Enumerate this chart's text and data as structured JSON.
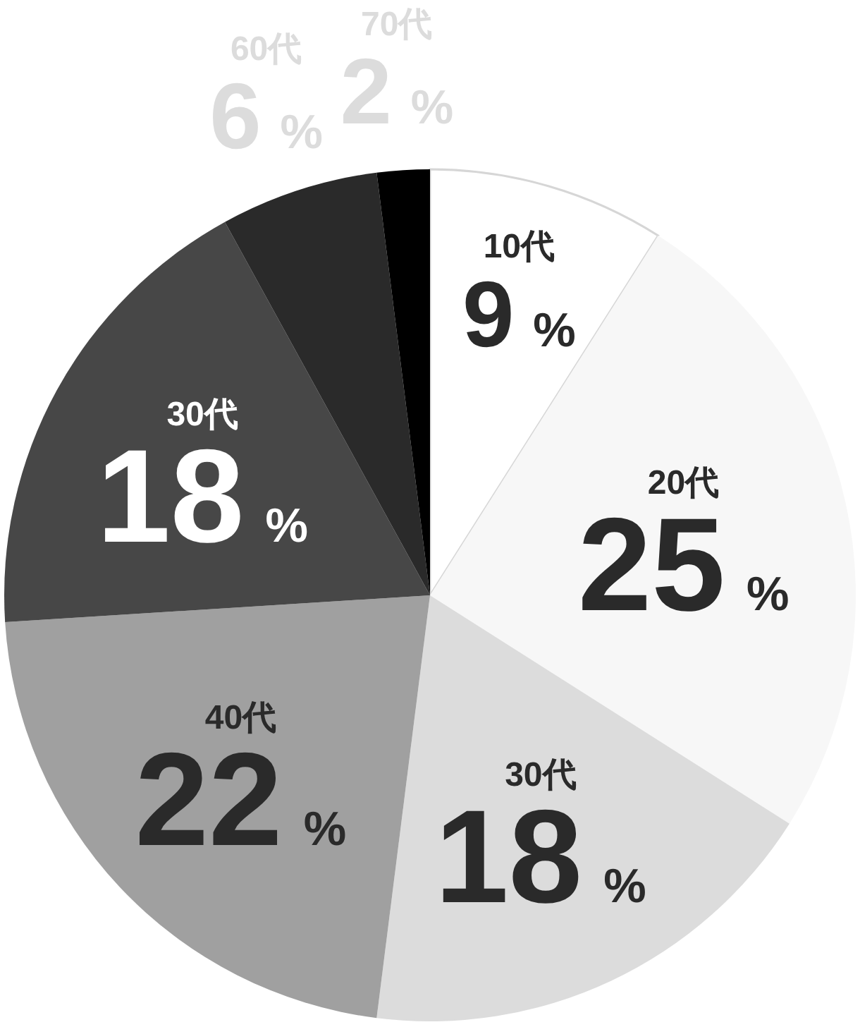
{
  "chart_data": {
    "type": "pie",
    "categories": [
      "10代",
      "20代",
      "30代",
      "40代",
      "30代",
      "60代",
      "70代"
    ],
    "values": [
      9,
      25,
      18,
      22,
      18,
      6,
      2
    ],
    "colors": [
      "#ffffff",
      "#f7f7f7",
      "#dcdcdc",
      "#a0a0a0",
      "#474747",
      "#2a2a2a",
      "#000000"
    ],
    "value_labels": [
      "9 %",
      "25 %",
      "18 %",
      "22 %",
      "18 %",
      "6 %",
      "2 %"
    ]
  }
}
